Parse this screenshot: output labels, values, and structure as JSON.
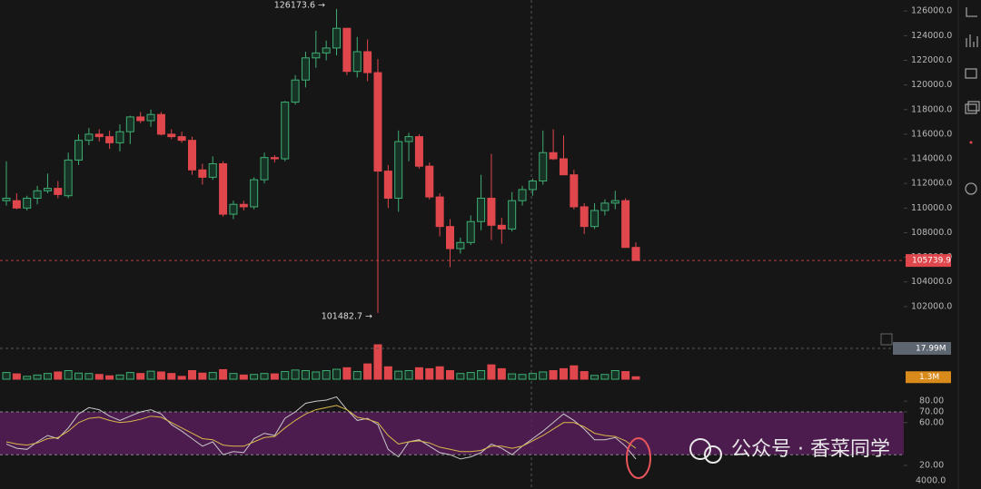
{
  "chart_data": {
    "type": "candlestick",
    "open": [
      110600,
      110600,
      110000,
      110800,
      111400,
      111600,
      111000,
      113900,
      115500,
      116000,
      115800,
      115300,
      116200,
      117400,
      117100,
      117600,
      116000,
      115800,
      115500,
      113100,
      112500,
      113600,
      109500,
      110300,
      110100,
      112300,
      114100,
      114000,
      118600,
      120400,
      122200,
      122600,
      123000,
      124600,
      121100,
      122700,
      121000,
      113000,
      110800,
      115400,
      115800,
      113400,
      110900,
      108500,
      106700,
      107200,
      108900,
      110800,
      108600,
      108300,
      110600,
      111500,
      112200,
      114500,
      114000,
      112700,
      110100,
      108500,
      109800,
      110400,
      110600,
      106800
    ],
    "high": [
      113800,
      111200,
      111000,
      111800,
      112800,
      112200,
      114500,
      116000,
      116500,
      116400,
      116300,
      116800,
      117500,
      117800,
      118000,
      117800,
      116400,
      116200,
      115800,
      113600,
      114200,
      113800,
      110600,
      110600,
      112500,
      114500,
      114300,
      118700,
      120800,
      122700,
      124400,
      123600,
      126173.6,
      124600,
      123900,
      123700,
      122100,
      113500,
      116300,
      116100,
      116000,
      113700,
      111200,
      109100,
      107600,
      109400,
      112700,
      114400,
      109200,
      111300,
      111800,
      112400,
      116300,
      116400,
      115900,
      113100,
      110400,
      110400,
      110700,
      111400,
      110800,
      107200
    ],
    "low": [
      110200,
      109900,
      109800,
      110300,
      111200,
      110800,
      110800,
      113500,
      115100,
      115400,
      114800,
      114600,
      115200,
      116900,
      116600,
      115900,
      115600,
      115300,
      112700,
      111900,
      112300,
      109300,
      109100,
      109800,
      109900,
      112000,
      113700,
      113800,
      118400,
      119800,
      121400,
      122000,
      122400,
      120800,
      120600,
      120300,
      101482.7,
      110000,
      109700,
      113800,
      113200,
      110700,
      107700,
      105200,
      106300,
      107000,
      108200,
      107400,
      107100,
      108100,
      110200,
      111000,
      111900,
      113900,
      112900,
      109900,
      107900,
      108300,
      109400,
      109900,
      106800,
      105739.9
    ],
    "close": [
      110800,
      110000,
      110800,
      111400,
      111600,
      111100,
      113900,
      115500,
      116000,
      115800,
      115300,
      116200,
      117400,
      117100,
      117600,
      116000,
      115800,
      115500,
      113100,
      112500,
      113600,
      109500,
      110300,
      110100,
      112300,
      114100,
      114000,
      118600,
      120400,
      122200,
      122600,
      123000,
      124600,
      121100,
      122700,
      121000,
      113000,
      110800,
      115400,
      115800,
      113400,
      110900,
      108500,
      106700,
      107200,
      108900,
      110800,
      108600,
      108300,
      110600,
      111500,
      112200,
      114500,
      114000,
      112700,
      110100,
      108500,
      109800,
      110400,
      110600,
      106800,
      105739.9
    ],
    "up_color": "#3fae73",
    "down_color": "#e0474c",
    "ylim": [
      100000,
      126900
    ],
    "yticks": [
      {
        "value": 102000,
        "label": "102000.0"
      },
      {
        "value": 104000,
        "label": "104000.0"
      },
      {
        "value": 106000,
        "label": "106000.0"
      },
      {
        "value": 108000,
        "label": "108000.0"
      },
      {
        "value": 110000,
        "label": "110000.0"
      },
      {
        "value": 112000,
        "label": "112000.0"
      },
      {
        "value": 114000,
        "label": "114000.0"
      },
      {
        "value": 116000,
        "label": "116000.0"
      },
      {
        "value": 118000,
        "label": "118000.0"
      },
      {
        "value": 120000,
        "label": "120000.0"
      },
      {
        "value": 122000,
        "label": "122000.0"
      },
      {
        "value": 124000,
        "label": "124000.0"
      },
      {
        "value": 126000,
        "label": "126000.0"
      }
    ],
    "last_price": {
      "value": 105739.9,
      "label": "105739.9"
    },
    "high_label": {
      "value": 126173.6,
      "label": "126173.6 →"
    },
    "low_label": {
      "value": 101482.7,
      "label": "101482.7 →"
    },
    "volume": [
      3.5,
      2.8,
      1.5,
      2.2,
      3.0,
      3.8,
      4.5,
      3.2,
      3.0,
      2.5,
      1.8,
      2.2,
      3.5,
      3.0,
      4.2,
      3.8,
      3.0,
      1.5,
      4.5,
      3.2,
      3.5,
      5.0,
      3.0,
      2.2,
      2.5,
      3.0,
      2.8,
      4.0,
      4.8,
      4.5,
      3.8,
      4.5,
      5.2,
      6.0,
      4.0,
      8.0,
      17.99,
      6.5,
      4.2,
      4.5,
      6.0,
      5.5,
      6.5,
      4.5,
      3.0,
      3.5,
      4.5,
      7.5,
      5.5,
      2.8,
      2.5,
      3.0,
      3.8,
      4.5,
      5.5,
      7.0,
      4.0,
      2.0,
      2.5,
      4.5,
      4.0,
      1.3
    ],
    "volume_level": {
      "value": 17.99,
      "label": "17.99M"
    },
    "volume_last": {
      "value": 1.3,
      "label": "1.3M"
    },
    "osc_series": [
      {
        "color": "#c8c8c8",
        "values": [
          40,
          36,
          35,
          42,
          48,
          45,
          55,
          68,
          74,
          72,
          66,
          62,
          66,
          70,
          72,
          68,
          58,
          52,
          45,
          38,
          42,
          30,
          33,
          32,
          45,
          50,
          48,
          64,
          70,
          78,
          80,
          81,
          84,
          72,
          62,
          64,
          58,
          35,
          28,
          42,
          44,
          38,
          32,
          30,
          26,
          28,
          32,
          40,
          36,
          30,
          38,
          45,
          52,
          60,
          68,
          62,
          54,
          44,
          44,
          46,
          38,
          26
        ]
      },
      {
        "color": "#d9b84a",
        "values": [
          42,
          40,
          39,
          41,
          45,
          46,
          52,
          60,
          64,
          65,
          62,
          60,
          61,
          63,
          66,
          65,
          60,
          55,
          50,
          45,
          44,
          39,
          38,
          38,
          42,
          46,
          47,
          55,
          62,
          68,
          72,
          74,
          76,
          72,
          65,
          63,
          60,
          48,
          40,
          42,
          43,
          41,
          37,
          35,
          33,
          33,
          34,
          38,
          38,
          36,
          38,
          43,
          48,
          54,
          60,
          60,
          56,
          50,
          48,
          47,
          43,
          36
        ]
      }
    ],
    "osc_band": [
      30,
      70
    ],
    "osc_band_color": "#5a1e5e",
    "osc_ylim": [
      -2,
      92
    ],
    "osc_yticks": [
      {
        "value": 80,
        "label": "80.00"
      },
      {
        "value": 70,
        "label": "70.00"
      },
      {
        "value": 60,
        "label": "60.00"
      },
      {
        "value": 20,
        "label": "20.00"
      }
    ],
    "axis_fragment": "4000.0"
  },
  "watermark": "公众号 · 香菜同学"
}
